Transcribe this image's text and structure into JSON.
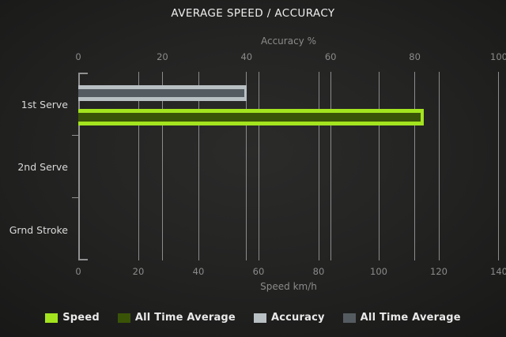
{
  "chart_data": {
    "type": "bar",
    "orientation": "horizontal",
    "title": "AVERAGE SPEED / ACCURACY",
    "categories": [
      "1st Serve",
      "2nd Serve",
      "Grnd Stroke"
    ],
    "axes": {
      "top": {
        "label": "Accuracy %",
        "ticks": [
          0,
          20,
          40,
          60,
          80,
          100
        ],
        "range": [
          0,
          100
        ]
      },
      "bottom": {
        "label": "Speed km/h",
        "ticks": [
          0,
          20,
          40,
          60,
          80,
          100,
          120,
          140
        ],
        "range": [
          0,
          140
        ]
      }
    },
    "grid": true,
    "legend_position": "bottom",
    "series": [
      {
        "name": "Speed",
        "axis": "bottom",
        "color": "#a3e41f",
        "values": [
          115,
          0,
          0
        ]
      },
      {
        "name": "All Time Average",
        "axis": "bottom",
        "color": "#3a5407",
        "values": [
          114,
          0,
          0
        ]
      },
      {
        "name": "Accuracy",
        "axis": "top",
        "color": "#b9c0c4",
        "values": [
          40,
          0,
          0
        ]
      },
      {
        "name": "All Time Average",
        "axis": "top",
        "color": "#555c61",
        "values": [
          39.5,
          0,
          0
        ]
      }
    ],
    "colors": {
      "background_center": "#242423",
      "background_edge": "#141414",
      "gridline": "#8c8c8c",
      "title_text": "#eeeeee",
      "tick_text": "#8b8b8b",
      "category_text": "#d9d9d9",
      "legend_text": "#e9e9e9"
    }
  }
}
